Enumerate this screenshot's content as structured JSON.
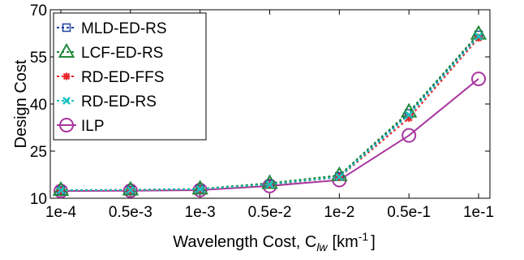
{
  "chart_data": {
    "type": "line",
    "categories": [
      "1e-4",
      "0.5e-3",
      "1e-3",
      "0.5e-2",
      "1e-2",
      "0.5e-1",
      "1e-1"
    ],
    "xlabel": {
      "text": "Wavelength Cost, C",
      "sub": "lw",
      "bracket_open": "[km",
      "sup": "-1",
      "bracket_close": "]"
    },
    "ylabel": "Design Cost",
    "ylim": [
      10,
      70
    ],
    "yticks": [
      "10",
      "25",
      "40",
      "55",
      "70"
    ],
    "legend_position": "top-left",
    "grid": false,
    "series": [
      {
        "name": "MLD-ED-RS",
        "color": "#1f3f9f",
        "marker": "square",
        "dashed": true,
        "values": [
          12.5,
          12.6,
          12.9,
          14.5,
          17.0,
          37.0,
          62.0
        ]
      },
      {
        "name": "LCF-ED-RS",
        "color": "#1e8a3c",
        "marker": "triangle",
        "dashed": true,
        "values": [
          12.6,
          12.7,
          13.0,
          14.8,
          17.3,
          37.5,
          62.3
        ]
      },
      {
        "name": "RD-ED-FFS",
        "color": "#e8262c",
        "marker": "star",
        "dashed": true,
        "values": [
          12.4,
          12.5,
          12.8,
          14.3,
          16.7,
          35.5,
          61.0
        ]
      },
      {
        "name": "RD-ED-RS",
        "color": "#18c0c0",
        "marker": "x",
        "dashed": true,
        "values": [
          12.5,
          12.6,
          12.9,
          14.4,
          16.8,
          36.5,
          61.5
        ]
      },
      {
        "name": "ILP",
        "color": "#a8359e",
        "marker": "circle",
        "dashed": false,
        "values": [
          12.3,
          12.4,
          12.6,
          13.9,
          15.8,
          30.0,
          48.0
        ]
      }
    ]
  }
}
